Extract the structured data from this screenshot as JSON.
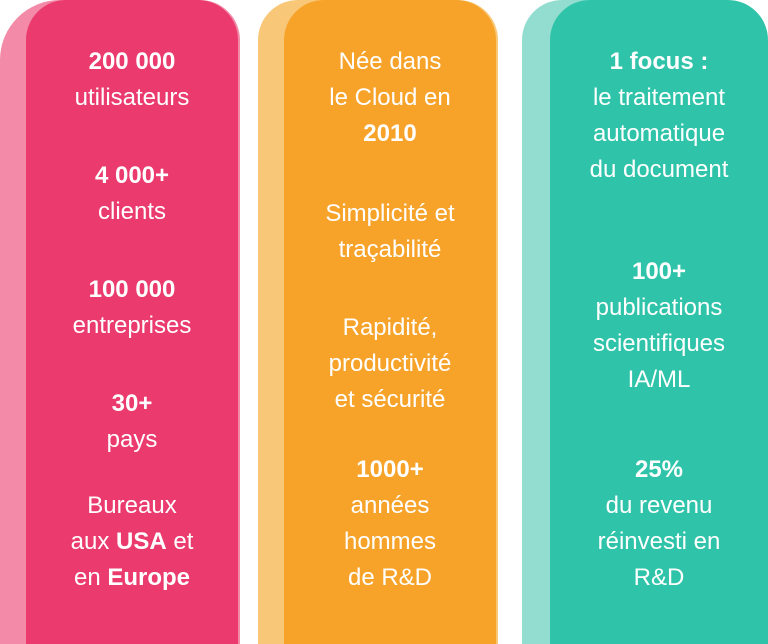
{
  "col1": {
    "b1": {
      "strong": "200 000",
      "text": "utilisateurs"
    },
    "b2": {
      "strong": "4 000+",
      "text": "clients"
    },
    "b3": {
      "strong": "100 000",
      "text": "entreprises"
    },
    "b4": {
      "strong": "30+",
      "text": "pays"
    },
    "b5": {
      "l1": "Bureaux",
      "l2a": "aux ",
      "l2b": "USA",
      "l2c": " et",
      "l3a": "en ",
      "l3b": "Europe"
    }
  },
  "col2": {
    "b1": {
      "l1": "Née dans",
      "l2": "le Cloud en",
      "l3": "2010"
    },
    "b2": {
      "l1": "Simplicité et",
      "l2": "traçabilité"
    },
    "b3": {
      "l1": "Rapidité,",
      "l2": "productivité",
      "l3": "et sécurité"
    },
    "b4": {
      "strong": "1000+",
      "l2": "années",
      "l3": "hommes",
      "l4": "de R&D"
    }
  },
  "col3": {
    "b1": {
      "strong": "1 focus :",
      "l2": "le traitement",
      "l3": "automatique",
      "l4": "du document"
    },
    "b2": {
      "strong": "100+",
      "l2": "publications",
      "l3": "scientifiques",
      "l4": "IA/ML"
    },
    "b3": {
      "strong": "25%",
      "l2": "du revenu",
      "l3": "réinvesti en",
      "l4": "R&D"
    }
  },
  "colors": {
    "pink": "#ea3a6e",
    "orange": "#f7a32a",
    "teal": "#2fc4a9"
  }
}
